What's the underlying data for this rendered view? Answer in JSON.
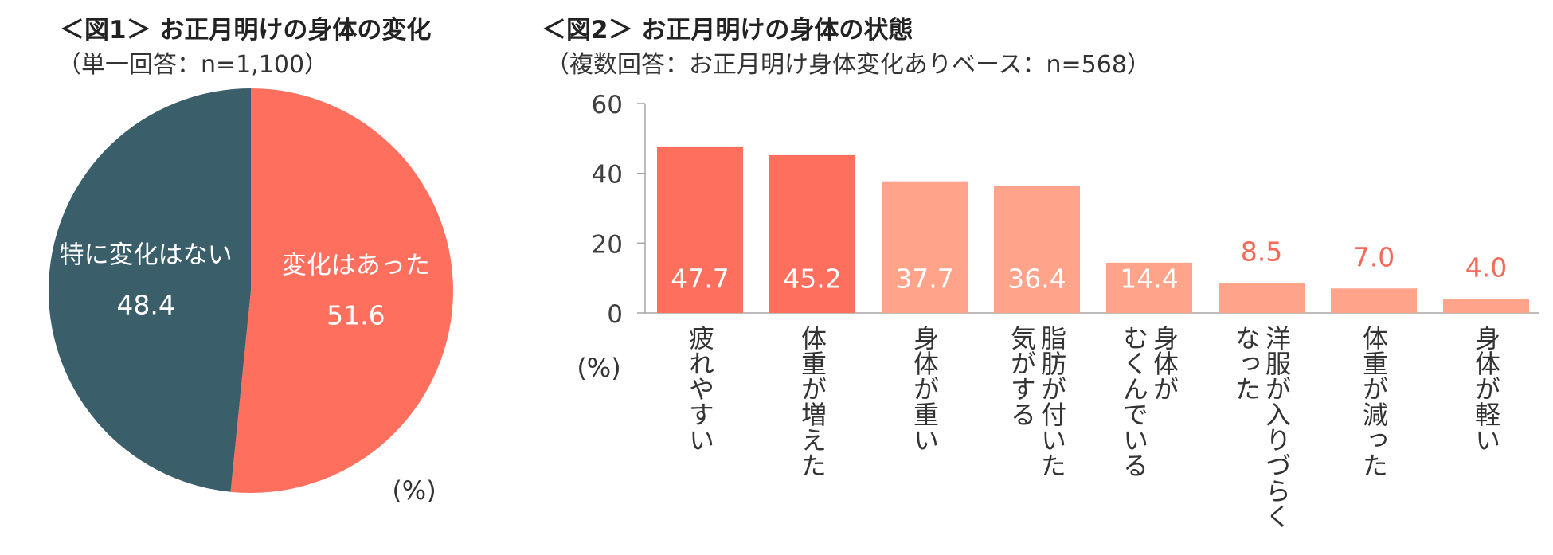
{
  "chart_data": [
    {
      "type": "pie",
      "title": "＜図1＞ お正月明けの身体の変化",
      "subtitle": "（単一回答：n=1,100）",
      "unit_label": "(%)",
      "slices": [
        {
          "label": "変化はあった",
          "value": 51.6,
          "value_label": "51.6",
          "color": "#ff6f5e"
        },
        {
          "label": "特に変化はない",
          "value": 48.4,
          "value_label": "48.4",
          "color": "#3a5f6a"
        }
      ]
    },
    {
      "type": "bar",
      "title": "＜図2＞ お正月明けの身体の状態",
      "subtitle": "（複数回答：お正月明け身体変化ありベース：n=568）",
      "ylabel": "(%)",
      "ylim": [
        0,
        60
      ],
      "yticks": [
        {
          "value": 0,
          "label": "0"
        },
        {
          "value": 20,
          "label": "20"
        },
        {
          "value": 40,
          "label": "40"
        },
        {
          "value": 60,
          "label": "60"
        }
      ],
      "categories": [
        {
          "label": "疲れやすい",
          "lines": [
            "疲れやすい"
          ]
        },
        {
          "label": "体重が増えた",
          "lines": [
            "体重が増えた"
          ]
        },
        {
          "label": "身体が重い",
          "lines": [
            "身体が重い"
          ]
        },
        {
          "label": "脂肪が付いた気がする",
          "lines": [
            "脂肪が付いた",
            "気がする"
          ]
        },
        {
          "label": "身体がむくんでいる",
          "lines": [
            "身体が",
            "むくんでいる"
          ]
        },
        {
          "label": "洋服が入りづらくなった",
          "lines": [
            "洋服が入りづらく",
            "なった"
          ]
        },
        {
          "label": "体重が減った",
          "lines": [
            "体重が減った"
          ]
        },
        {
          "label": "身体が軽い",
          "lines": [
            "身体が軽い"
          ]
        }
      ],
      "values": [
        47.7,
        45.2,
        37.7,
        36.4,
        14.4,
        8.5,
        7.0,
        4.0
      ],
      "value_labels": [
        "47.7",
        "45.2",
        "37.7",
        "36.4",
        "14.4",
        "8.5",
        "7.0",
        "4.0"
      ],
      "colors": {
        "top": "#ff6f5e",
        "other": "#ffa38a",
        "label_inside": "#ffffff",
        "label_outside": "#f46a59",
        "axis": "#a6a6a6"
      }
    }
  ]
}
